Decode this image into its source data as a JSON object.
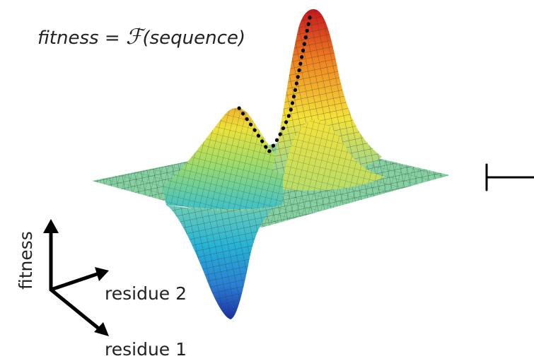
{
  "equation": {
    "lhs": "fitness = ",
    "func": "ℱ",
    "rhs": "(sequence)"
  },
  "axes": {
    "vertical": "fitness",
    "depth": "residue 2",
    "horizontal": "residue 1"
  },
  "colors": {
    "peak": "#c8141e",
    "high": "#f08020",
    "mid": "#f5e23a",
    "flat": "#86d1a3",
    "low": "#27b3d6",
    "trough": "#1c2ea8",
    "mesh": "#2b3a2b",
    "path": "#000000"
  }
}
